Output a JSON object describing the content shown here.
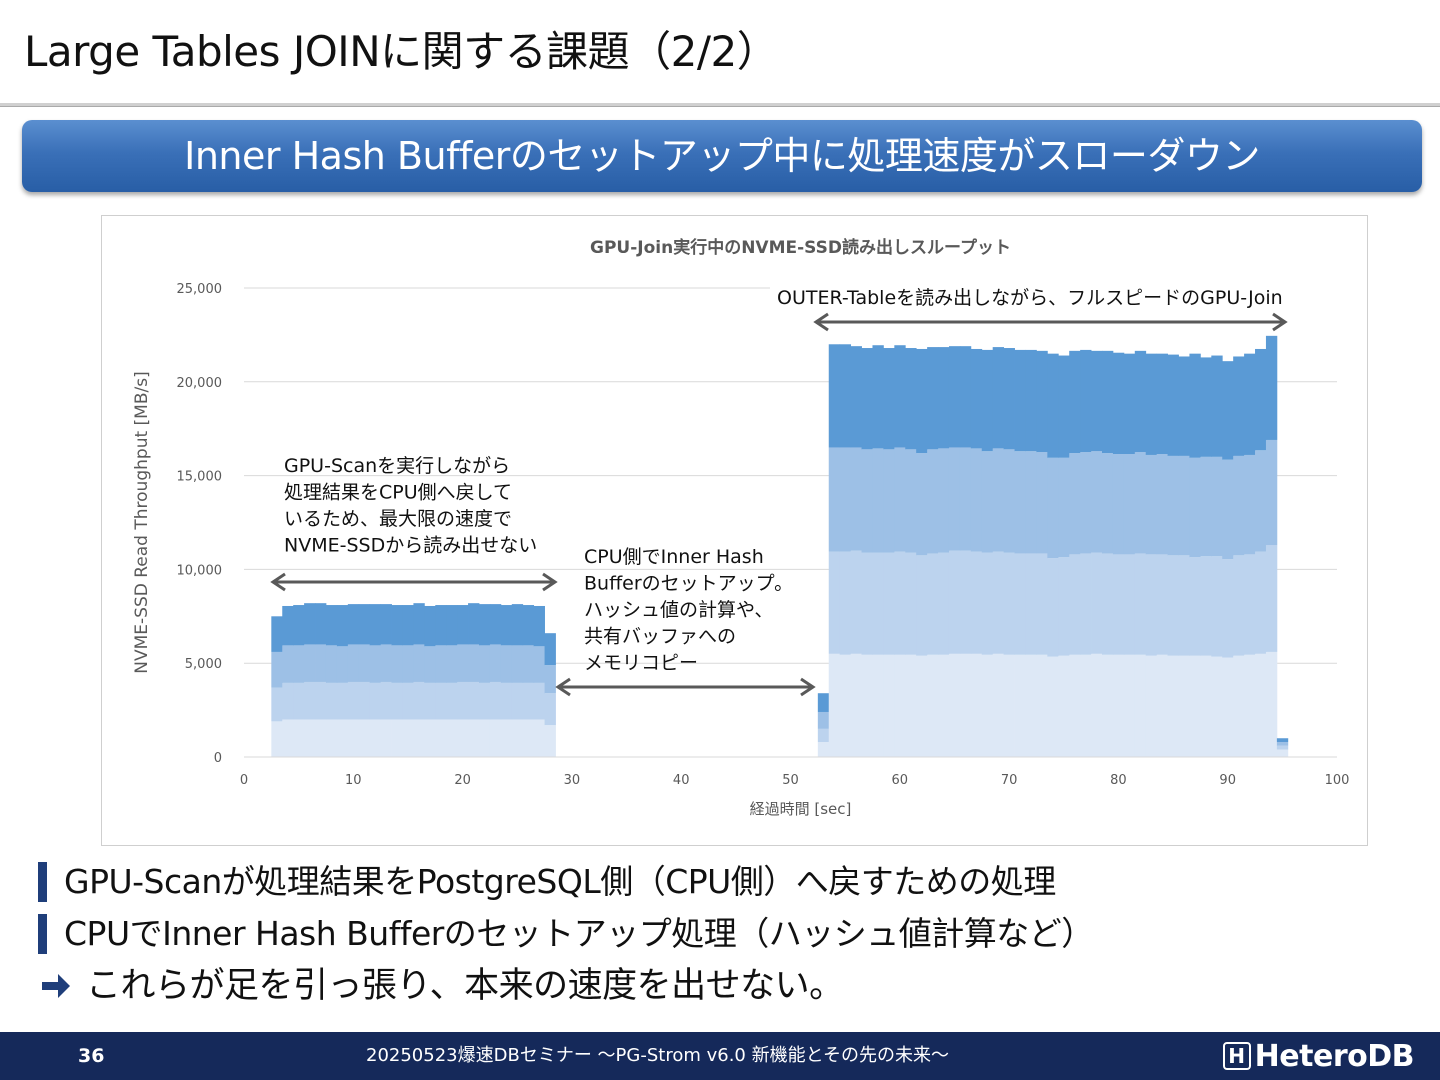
{
  "slide": {
    "title": "Large Tables JOINに関する課題（2/2）",
    "banner": "Inner Hash Bufferのセットアップ中に処理速度がスローダウン"
  },
  "chart_data": {
    "type": "bar",
    "stacked": true,
    "title": "GPU-Join実行中のNVME-SSD読み出しスループット",
    "xlabel": "経過時間 [sec]",
    "ylabel": "NVME-SSD Read Throughput [MB/s]",
    "xlim": [
      0,
      100
    ],
    "ylim": [
      0,
      25000
    ],
    "x_ticks": [
      "0",
      "10",
      "20",
      "30",
      "40",
      "50",
      "60",
      "70",
      "80",
      "90",
      "100"
    ],
    "y_ticks": [
      "0",
      "5,000",
      "10,000",
      "15,000",
      "20,000",
      "25,000"
    ],
    "grid": true,
    "series_colors": [
      "#dde8f6",
      "#bcd3ee",
      "#9dc0e6",
      "#5a9ad5"
    ],
    "x": [
      3,
      4,
      5,
      6,
      7,
      8,
      9,
      10,
      11,
      12,
      13,
      14,
      15,
      16,
      17,
      18,
      19,
      20,
      21,
      22,
      23,
      24,
      25,
      26,
      27,
      28,
      53,
      54,
      55,
      56,
      57,
      58,
      59,
      60,
      61,
      62,
      63,
      64,
      65,
      66,
      67,
      68,
      69,
      70,
      71,
      72,
      73,
      74,
      75,
      76,
      77,
      78,
      79,
      80,
      81,
      82,
      83,
      84,
      85,
      86,
      87,
      88,
      89,
      90,
      91,
      92,
      93,
      94,
      95
    ],
    "series": [
      {
        "values": [
          1900,
          2000,
          2000,
          2000,
          2000,
          2000,
          2000,
          2000,
          2000,
          2000,
          2000,
          2000,
          2000,
          2000,
          2000,
          2000,
          2000,
          2000,
          2000,
          2000,
          2000,
          2000,
          2000,
          2000,
          2000,
          1700,
          800,
          5500,
          5450,
          5500,
          5450,
          5450,
          5450,
          5450,
          5450,
          5400,
          5450,
          5450,
          5500,
          5500,
          5500,
          5450,
          5500,
          5450,
          5450,
          5450,
          5450,
          5350,
          5400,
          5450,
          5450,
          5500,
          5450,
          5450,
          5450,
          5450,
          5400,
          5450,
          5400,
          5400,
          5400,
          5400,
          5350,
          5300,
          5400,
          5450,
          5500,
          5600,
          400
        ]
      },
      {
        "values": [
          1800,
          1950,
          1950,
          2000,
          2000,
          1950,
          1950,
          2000,
          2000,
          1950,
          2000,
          1950,
          1950,
          2000,
          1950,
          1950,
          1950,
          2000,
          2000,
          1950,
          2000,
          1950,
          1950,
          1950,
          1950,
          1700,
          700,
          5450,
          5500,
          5500,
          5450,
          5450,
          5450,
          5500,
          5450,
          5350,
          5400,
          5450,
          5500,
          5500,
          5450,
          5450,
          5450,
          5450,
          5400,
          5400,
          5400,
          5250,
          5250,
          5350,
          5400,
          5400,
          5400,
          5350,
          5350,
          5400,
          5400,
          5350,
          5350,
          5350,
          5250,
          5300,
          5350,
          5250,
          5350,
          5350,
          5450,
          5700,
          200
        ]
      },
      {
        "values": [
          1900,
          2000,
          2000,
          2000,
          2000,
          2000,
          1950,
          2000,
          2000,
          2000,
          2000,
          2000,
          2000,
          2000,
          1950,
          2000,
          2000,
          2000,
          2000,
          2000,
          2000,
          2000,
          2000,
          2000,
          1950,
          1500,
          900,
          5550,
          5550,
          5500,
          5500,
          5550,
          5500,
          5550,
          5500,
          5450,
          5550,
          5550,
          5500,
          5500,
          5500,
          5400,
          5500,
          5500,
          5450,
          5450,
          5400,
          5350,
          5300,
          5400,
          5400,
          5400,
          5350,
          5350,
          5350,
          5400,
          5300,
          5350,
          5300,
          5300,
          5300,
          5300,
          5300,
          5300,
          5300,
          5300,
          5400,
          5600,
          200
        ]
      },
      {
        "values": [
          1900,
          2100,
          2150,
          2200,
          2200,
          2150,
          2200,
          2150,
          2150,
          2200,
          2150,
          2150,
          2150,
          2200,
          2150,
          2150,
          2150,
          2100,
          2200,
          2200,
          2150,
          2150,
          2200,
          2150,
          2150,
          1700,
          1000,
          5500,
          5500,
          5400,
          5400,
          5500,
          5400,
          5450,
          5400,
          5550,
          5450,
          5400,
          5400,
          5400,
          5300,
          5400,
          5400,
          5400,
          5400,
          5400,
          5400,
          5550,
          5450,
          5450,
          5450,
          5350,
          5450,
          5400,
          5350,
          5400,
          5400,
          5350,
          5400,
          5300,
          5550,
          5300,
          5400,
          5250,
          5300,
          5400,
          5400,
          5550,
          200
        ]
      }
    ],
    "annotations": [
      "GPU-Scanを実行しながら",
      "処理結果をCPU側へ戻して",
      "いるため、最大限の速度で",
      "NVME-SSDから読み出せない",
      "CPU側でInner Hash",
      "Bufferのセットアップ。",
      "ハッシュ値の計算や、",
      "共有バッファへの",
      "メモリコピー",
      "OUTER-Tableを読み出しながら、フルスピードのGPU-Join"
    ]
  },
  "bullets": [
    "GPU-Scanが処理結果をPostgreSQL側（CPU側）へ戻すための処理",
    "CPUでInner Hash Bufferのセットアップ処理（ハッシュ値計算など）"
  ],
  "conclusion": "これらが足を引っ張り、本来の速度を出せない。",
  "footer": {
    "page": "36",
    "text": "20250523爆速DBセミナー ～PG-Strom v6.0  新機能とその先の未来～",
    "logo": "HeteroDB"
  },
  "colors": {
    "banner": "#3a70b8",
    "footer": "#15295a",
    "bullet_marker": "#1f3e7a"
  },
  "icons": {
    "conclusion": "right-arrow-icon",
    "logo": "heterodb-logo-icon"
  }
}
